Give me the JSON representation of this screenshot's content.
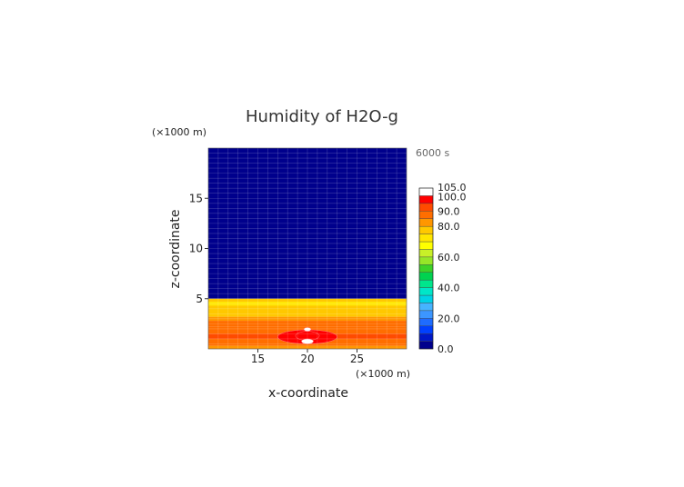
{
  "chart_data": {
    "type": "heatmap",
    "title": "Humidity of H2O-g",
    "xlabel": "x-coordinate",
    "ylabel": "z-coordinate",
    "x_unit": "(×1000 m)",
    "y_unit": "(×1000 m)",
    "time_label": "6000 s",
    "xlim": [
      10,
      30
    ],
    "ylim": [
      0,
      20
    ],
    "x_ticks": [
      15,
      20,
      25
    ],
    "y_ticks": [
      5,
      10,
      15
    ],
    "colorbar": {
      "labels": [
        "0.0",
        "20.0",
        "40.0",
        "60.0",
        "80.0",
        "90.0",
        "100.0",
        "105.0"
      ],
      "levels": [
        0,
        5,
        10,
        15,
        20,
        25,
        30,
        35,
        40,
        45,
        50,
        55,
        60,
        65,
        70,
        75,
        80,
        85,
        90,
        95,
        100,
        105
      ],
      "colors": [
        "#00008c",
        "#0018c8",
        "#0040ff",
        "#1e6cff",
        "#3c96ff",
        "#46b4ff",
        "#00d2e6",
        "#00e6c8",
        "#00e68c",
        "#00d250",
        "#3cd228",
        "#96e628",
        "#c8f028",
        "#ffff00",
        "#ffe600",
        "#ffc800",
        "#ff9600",
        "#ff6e00",
        "#ff4b00",
        "#ff0000",
        "#ffffff"
      ]
    },
    "bands": [
      {
        "z_from": 5.0,
        "z_to": 20.0,
        "value": 2
      },
      {
        "z_from": 4.7,
        "z_to": 5.0,
        "value": 77
      },
      {
        "z_from": 4.3,
        "z_to": 4.7,
        "value": 72
      },
      {
        "z_from": 3.2,
        "z_to": 4.3,
        "value": 78
      },
      {
        "z_from": 2.8,
        "z_to": 3.2,
        "value": 82
      },
      {
        "z_from": 2.2,
        "z_to": 2.8,
        "value": 86
      },
      {
        "z_from": 1.5,
        "z_to": 2.2,
        "value": 88
      },
      {
        "z_from": 1.0,
        "z_to": 1.5,
        "value": 92
      },
      {
        "z_from": 0.3,
        "z_to": 1.0,
        "value": 88
      },
      {
        "z_from": 0.0,
        "z_to": 0.3,
        "value": 80
      }
    ],
    "features": [
      {
        "type": "ellipse",
        "cx": 20,
        "cz": 1.2,
        "rx": 3.0,
        "rz": 0.7,
        "value": 95
      },
      {
        "type": "ellipse",
        "cx": 20,
        "cz": 1.3,
        "rx": 1.2,
        "rz": 0.45,
        "value": 98
      },
      {
        "type": "ellipse",
        "cx": 20,
        "cz": 0.75,
        "rx": 0.6,
        "rz": 0.25,
        "value": 103
      },
      {
        "type": "ellipse",
        "cx": 20,
        "cz": 1.95,
        "rx": 0.35,
        "rz": 0.18,
        "value": 103
      }
    ]
  }
}
